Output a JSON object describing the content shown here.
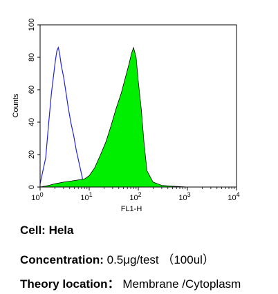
{
  "chart_data": {
    "type": "area",
    "title": "",
    "xlabel": "FL1-H",
    "ylabel": "Counts",
    "x_scale": "log",
    "xlim": [
      1,
      10000
    ],
    "ylim": [
      0,
      100
    ],
    "x_ticks": [
      {
        "value": 1,
        "base": "10",
        "exp": "0"
      },
      {
        "value": 10,
        "base": "10",
        "exp": "1"
      },
      {
        "value": 100,
        "base": "10",
        "exp": "2"
      },
      {
        "value": 1000,
        "base": "10",
        "exp": "3"
      },
      {
        "value": 10000,
        "base": "10",
        "exp": "4"
      }
    ],
    "y_ticks": [
      "0",
      "20",
      "40",
      "60",
      "80",
      "100"
    ],
    "grid": false,
    "series": [
      {
        "kind": "outline",
        "color": "#2222dd",
        "x": [
          1.0,
          1.3,
          1.5,
          1.7,
          1.9,
          2.05,
          2.2,
          2.35,
          2.5,
          2.7,
          3.0,
          3.3,
          3.7,
          4.2,
          4.8,
          5.5,
          6.3,
          7.2,
          7.5,
          7.8
        ],
        "y": [
          2,
          18,
          40,
          58,
          70,
          78,
          84,
          86,
          82,
          75,
          68,
          60,
          50,
          40,
          32,
          22,
          14,
          6,
          2,
          0
        ]
      },
      {
        "kind": "filled",
        "color": "#00ee00",
        "x": [
          1.0,
          1.5,
          2.0,
          3.0,
          5.0,
          8.0,
          10.0,
          13.0,
          17.0,
          22.0,
          28.0,
          35.0,
          45.0,
          55.0,
          65.0,
          72.0,
          80.0,
          90.0,
          100.0,
          115.0,
          130.0,
          150.0,
          200.0,
          300.0,
          500.0,
          1000.0,
          10000.0
        ],
        "y": [
          0,
          1,
          2,
          3,
          4,
          5,
          7,
          12,
          20,
          28,
          38,
          48,
          58,
          68,
          76,
          82,
          86,
          80,
          65,
          48,
          28,
          10,
          3,
          1,
          0.5,
          0,
          0
        ]
      }
    ]
  },
  "captions": {
    "cell_label": "Cell:",
    "cell_value": "Hela",
    "conc_label": "Concentration:",
    "conc_value": "0.5μg/test （100ul）",
    "theory_label": "Theory location：",
    "theory_value": "Membrane /Cytoplasm"
  }
}
